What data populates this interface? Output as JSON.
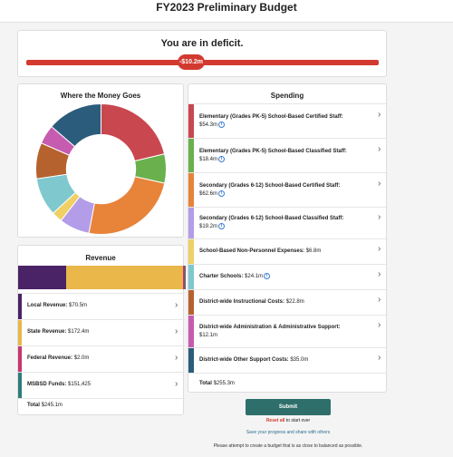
{
  "header": {
    "title": "FY2023 Preliminary Budget"
  },
  "deficit": {
    "title": "You are in deficit.",
    "marker_label": "-$10.2m",
    "bar_color": "#d33a2f"
  },
  "where_money_goes": {
    "title": "Where the Money Goes",
    "chart_data": {
      "type": "pie",
      "categories": [
        "Elementary (Grades PK-5) School-Based Certified Staff",
        "Elementary (Grades PK-5) School-Based Classified Staff",
        "Secondary (Grades 6-12) School-Based Certified Staff",
        "Secondary (Grades 6-12) School-Based Classified Staff",
        "School-Based Non-Personnel Expenses",
        "Charter Schools",
        "District-wide Instructional Costs",
        "District-wide Administration & Administrative Support",
        "District-wide Other Support Costs"
      ],
      "values": [
        54.3,
        18.4,
        62.6,
        19.2,
        6.8,
        24.1,
        22.8,
        12.1,
        35.0
      ],
      "colors": [
        "#c9474f",
        "#6ab04c",
        "#e8833a",
        "#b39ce8",
        "#f0d064",
        "#7ec8ce",
        "#b5622e",
        "#c65cb0",
        "#2b5c7c"
      ],
      "inner_radius_ratio": 0.53
    }
  },
  "revenue": {
    "title": "Revenue",
    "chart_data": {
      "type": "bar",
      "categories": [
        "Local Revenue",
        "State Revenue",
        "Federal Revenue",
        "MSBSD Funds"
      ],
      "values": [
        70.5,
        172.4,
        2.0,
        0.151425
      ],
      "colors": [
        "#4a2366",
        "#e9b74a",
        "#c7356e",
        "#2f7c79"
      ]
    },
    "items": [
      {
        "label": "Local Revenue:",
        "amount": "$70.5m",
        "color": "#4a2366"
      },
      {
        "label": "State Revenue:",
        "amount": "$172.4m",
        "color": "#e9b74a"
      },
      {
        "label": "Federal Revenue:",
        "amount": "$2.0m",
        "color": "#c7356e"
      },
      {
        "label": "MSBSD Funds:",
        "amount": "$151,425",
        "color": "#2f7c79"
      }
    ],
    "total_label": "Total",
    "total_amount": "$245.1m"
  },
  "spending": {
    "title": "Spending",
    "items": [
      {
        "label": "Elementary (Grades PK-5) School-Based Certified Staff:",
        "amount": "$54.3m",
        "color": "#c9474f",
        "info": true
      },
      {
        "label": "Elementary (Grades PK-5) School-Based Classified Staff:",
        "amount": "$18.4m",
        "color": "#6ab04c",
        "info": true
      },
      {
        "label": "Secondary (Grades 6-12) School-Based Certified Staff:",
        "amount": "$62.6m",
        "color": "#e8833a",
        "info": true
      },
      {
        "label": "Secondary (Grades 6-12) School-Based Classified Staff:",
        "amount": "$19.2m",
        "color": "#b39ce8",
        "info": true
      },
      {
        "label": "School-Based Non-Personnel Expenses:",
        "amount": "$6.8m",
        "color": "#f0d064",
        "info": false
      },
      {
        "label": "Charter Schools:",
        "amount": "$24.1m",
        "color": "#7ec8ce",
        "info": true
      },
      {
        "label": "District-wide Instructional Costs:",
        "amount": "$22.8m",
        "color": "#b5622e",
        "info": false
      },
      {
        "label": "District-wide Administration & Administrative Support:",
        "amount": "$12.1m",
        "color": "#c65cb0",
        "info": false
      },
      {
        "label": "District-wide Other Support Costs:",
        "amount": "$35.0m",
        "color": "#2b5c7c",
        "info": false
      }
    ],
    "total_label": "Total",
    "total_amount": "$255.3m"
  },
  "actions": {
    "submit_label": "Submit",
    "reset_link": "Reset all",
    "reset_suffix": "to start over",
    "save_link": "Save your progress and share with others",
    "footer_note": "Please attempt to create a budget that is as close to balanced as possible."
  },
  "icons": {
    "chevron": "chevron-right-icon",
    "info": "info-icon"
  }
}
